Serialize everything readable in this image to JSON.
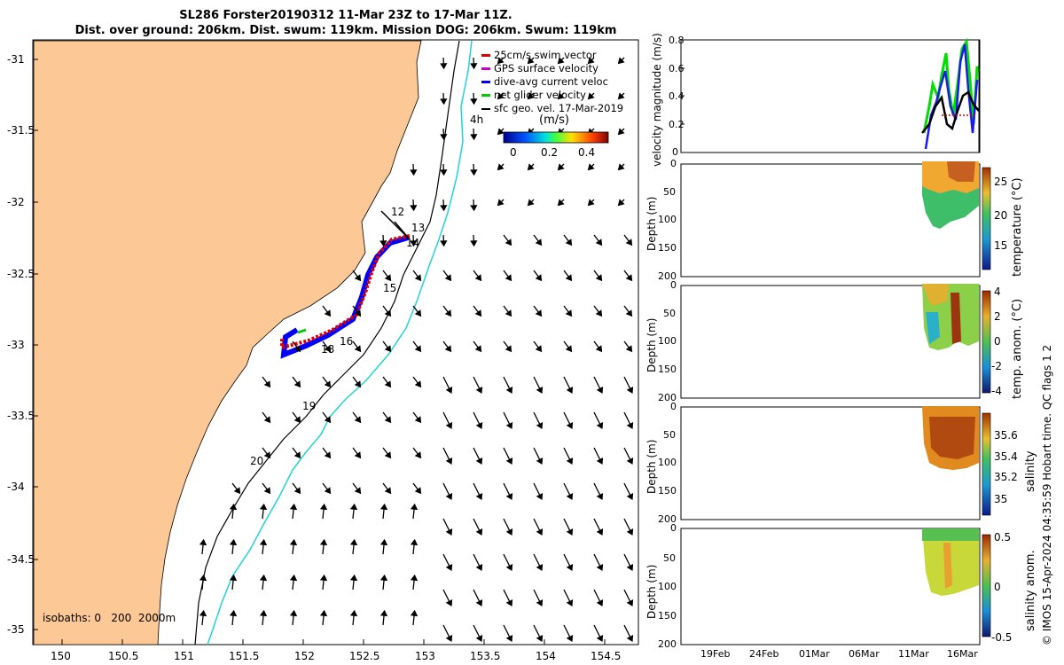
{
  "header": {
    "title_line1": "SL286 Forster20190312 11-Mar 23Z to 17-Mar 11Z.",
    "title_line2": "Dist. over ground: 206km. Dist. swum: 119km. Mission DOG: 206km. Swum: 119km"
  },
  "map": {
    "lon_ticks": [
      "150",
      "150.5",
      "151",
      "151.5",
      "152",
      "152.5",
      "153",
      "153.5",
      "154",
      "154.5"
    ],
    "lat_ticks": [
      "-31",
      "-31.5",
      "-32",
      "-32.5",
      "-33",
      "-33.5",
      "-34",
      "-34.5",
      "-35"
    ],
    "legend": [
      {
        "label": "25cm/s swim vector",
        "color": "#e00000"
      },
      {
        "label": "GPS surface velocity",
        "color": "#cc00cc"
      },
      {
        "label": "dive-avg current veloc",
        "color": "#0000ff"
      },
      {
        "label": "net glider velocity",
        "color": "#00cc00"
      },
      {
        "label": "sfc geo. vel. 17-Mar-2019",
        "color": "#000000"
      }
    ],
    "colorbar_unit": "(m/s)",
    "colorbar_ticks": [
      "0",
      "0.2",
      "0.4"
    ],
    "day_labels": [
      "12",
      "13",
      "14",
      "15",
      "16",
      "18",
      "19",
      "20"
    ],
    "isobath_label": "isobaths: 0   200  2000m",
    "partial_label": "4h",
    "colors": {
      "land": "#fbc896",
      "isobath_2000": "#22d3d3",
      "track_red": "#e00000",
      "track_blue": "#0000ff",
      "track_green": "#00cc00"
    }
  },
  "panels": {
    "velocity": {
      "ylabel": "velocity magnitude (m/s)",
      "yticks": [
        "0",
        "0.2",
        "0.4",
        "0.6",
        "0.8"
      ]
    },
    "temperature": {
      "ylabel": "Depth (m)",
      "cb_label": "temperature (°C)",
      "cb_ticks": [
        "25",
        "20",
        "15"
      ]
    },
    "temp_anom": {
      "ylabel": "Depth (m)",
      "cb_label": "temp. anom. (°C)",
      "cb_ticks": [
        "4",
        "2",
        "0",
        "-2",
        "-4"
      ]
    },
    "salinity": {
      "ylabel": "Depth (m)",
      "cb_label": "salinity",
      "cb_ticks": [
        "35.6",
        "35.4",
        "35.2",
        "35"
      ]
    },
    "sal_anom": {
      "ylabel": "Depth (m)",
      "cb_label": "salinity anom.",
      "cb_ticks": [
        "0.5",
        "0",
        "-0.5"
      ]
    },
    "depth_ticks": [
      "0",
      "50",
      "100",
      "150",
      "200"
    ],
    "date_ticks": [
      "19Feb",
      "24Feb",
      "01Mar",
      "06Mar",
      "11Mar",
      "16Mar"
    ]
  },
  "footer": {
    "side_note": "© IMOS 15-Apr-2024 04:35:59 Hobart time. QC flags 1  2"
  }
}
